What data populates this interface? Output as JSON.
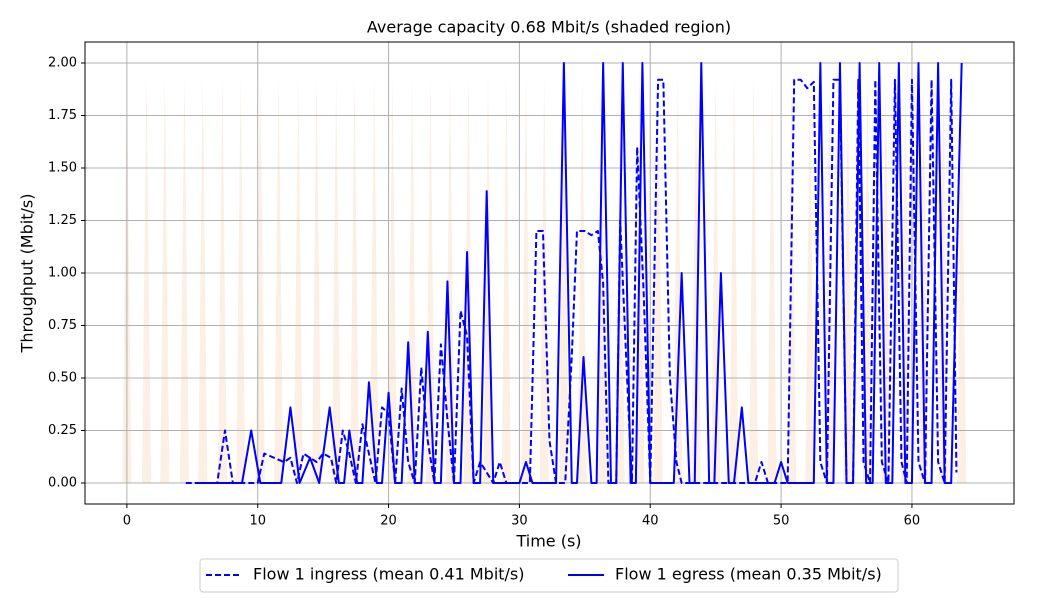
{
  "chart_data": {
    "type": "line",
    "title": "Average capacity 0.68 Mbit/s (shaded region)",
    "xlabel": "Time (s)",
    "ylabel": "Throughput (Mbit/s)",
    "xlim": [
      -3.2,
      67.8
    ],
    "ylim": [
      -0.1,
      2.1
    ],
    "xticks": [
      0,
      10,
      20,
      30,
      40,
      50,
      60
    ],
    "yticks": [
      {
        "value": 0,
        "label": "0.00"
      },
      {
        "value": 0.25,
        "label": "0.25"
      },
      {
        "value": 0.5,
        "label": "0.50"
      },
      {
        "value": 0.75,
        "label": "0.75"
      },
      {
        "value": 1,
        "label": "1.00"
      },
      {
        "value": 1.25,
        "label": "1.25"
      },
      {
        "value": 1.5,
        "label": "1.50"
      },
      {
        "value": 1.75,
        "label": "1.75"
      },
      {
        "value": 2,
        "label": "2.00"
      }
    ],
    "grid": true,
    "legend": "below",
    "shaded": {
      "color": "#fcefe4",
      "x": [
        0,
        1.5,
        2.9,
        4.4,
        5.8,
        7.3,
        8.7,
        10.2,
        11.6,
        13.1,
        14.5,
        16.0,
        17.4,
        18.9,
        20.3,
        21.8,
        23.2,
        24.7,
        26.1,
        27.6,
        29.0,
        30.5,
        31.9,
        33.4,
        34.8,
        36.3,
        37.7,
        39.2,
        40.6,
        42.1,
        43.5,
        45.0,
        46.4,
        47.9,
        49.3,
        50.8,
        52.2,
        53.7,
        55.1,
        56.6,
        58.0,
        59.5,
        60.9,
        62.4,
        63.8
      ],
      "values": [
        1.95,
        1.95,
        1.95,
        1.95,
        1.95,
        1.95,
        1.95,
        1.95,
        1.95,
        1.95,
        1.95,
        1.95,
        1.95,
        1.95,
        1.95,
        1.95,
        1.95,
        1.95,
        1.95,
        1.95,
        1.95,
        1.95,
        1.95,
        1.95,
        1.95,
        1.95,
        1.95,
        1.95,
        1.95,
        1.95,
        1.95,
        1.95,
        1.95,
        1.95,
        1.95,
        1.95,
        1.95,
        1.95,
        1.95,
        1.95,
        1.95,
        1.95,
        1.95,
        1.95,
        1.95
      ]
    },
    "series": [
      {
        "name": "Flow 1 ingress (mean 0.41 Mbit/s)",
        "color": "#0000ff",
        "dashed": true,
        "x": [
          4.5,
          6.9,
          7.5,
          8.1,
          10,
          10.5,
          12,
          12.5,
          13,
          13.5,
          14.5,
          15,
          15.6,
          16,
          16.5,
          17,
          17.5,
          18,
          18.5,
          19,
          19.5,
          20,
          20.5,
          21,
          21.5,
          22,
          22.5,
          23,
          23.5,
          24,
          24.5,
          25,
          25.5,
          26,
          26.5,
          27,
          28,
          28.5,
          29,
          30.8,
          31.3,
          31.8,
          32.3,
          32.8,
          33.5,
          34,
          34.4,
          35,
          35.5,
          36,
          36.4,
          36.8,
          37.4,
          37.7,
          38.3,
          38.6,
          39,
          39.5,
          40,
          40.6,
          41,
          41.5,
          42,
          42.4,
          48,
          48.5,
          49,
          50.5,
          51,
          51.5,
          52,
          52.5,
          53,
          53.5,
          54,
          54.5,
          55,
          55.5,
          55.9,
          56.3,
          56.8,
          57.2,
          57.7,
          58.2,
          58.7,
          59.2,
          59.6,
          60,
          60.5,
          61,
          61.5,
          62,
          62.5,
          63,
          63.4
        ],
        "values": [
          0,
          0,
          0.25,
          0,
          0,
          0.14,
          0.1,
          0.12,
          0,
          0.14,
          0.1,
          0.14,
          0.12,
          0,
          0.25,
          0.14,
          0,
          0.28,
          0.14,
          0,
          0.36,
          0.33,
          0,
          0.45,
          0.1,
          0,
          0.55,
          0.2,
          0,
          0.66,
          0.3,
          0,
          0.82,
          0.7,
          0,
          0.1,
          0,
          0.1,
          0,
          0,
          1.2,
          1.2,
          0.2,
          0,
          0,
          0.6,
          1.2,
          1.2,
          1.18,
          1.2,
          0.95,
          0,
          0,
          1.25,
          0.4,
          0,
          1.6,
          0.9,
          0,
          1.92,
          1.92,
          0.5,
          0.1,
          0,
          0,
          0.1,
          0,
          0,
          1.92,
          1.92,
          1.88,
          1.91,
          0.1,
          0,
          1.92,
          1.92,
          0,
          0,
          1.92,
          0.1,
          0,
          1.92,
          0.1,
          0,
          1.92,
          0.1,
          0,
          1.92,
          0.1,
          0,
          1.92,
          0.1,
          0,
          1.92,
          0.05
        ]
      },
      {
        "name": "Flow 1 egress (mean 0.35 Mbit/s)",
        "color": "#0000ff",
        "dashed": false,
        "x": [
          5.5,
          8.8,
          9.5,
          10.2,
          11.8,
          12.5,
          13.2,
          14,
          14.7,
          15.5,
          16.2,
          16.6,
          17,
          17.6,
          18,
          18.5,
          19.1,
          19.5,
          20,
          20.5,
          21,
          21.5,
          22,
          22.5,
          23,
          23.5,
          24,
          24.5,
          25,
          25.5,
          26,
          26.5,
          27,
          27.5,
          28,
          30,
          30.5,
          31,
          32.8,
          33.4,
          34,
          34.4,
          34.9,
          35.5,
          35.9,
          36.4,
          37,
          37.4,
          37.9,
          38.5,
          38.9,
          39.4,
          40,
          41.8,
          42.4,
          43,
          43.4,
          43.9,
          44.5,
          44.9,
          45.4,
          46,
          46.4,
          47,
          47.5,
          49.5,
          50,
          50.5,
          52.5,
          53,
          53.5,
          54,
          54.5,
          55,
          55.5,
          56,
          56.5,
          57,
          57.5,
          58,
          58.5,
          59,
          59.5,
          60,
          60.5,
          61,
          61.5,
          62,
          62.5,
          63,
          63.8
        ],
        "values": [
          0,
          0,
          0.25,
          0,
          0,
          0.36,
          0,
          0.12,
          0,
          0.36,
          0,
          0,
          0.25,
          0,
          0,
          0.48,
          0,
          0,
          0.43,
          0,
          0,
          0.67,
          0,
          0,
          0.72,
          0,
          0,
          0.96,
          0,
          0,
          1.1,
          0,
          0,
          1.39,
          0,
          0,
          0.1,
          0,
          0,
          2.0,
          0,
          0,
          0.6,
          0,
          0,
          2.0,
          0,
          0,
          2.0,
          0,
          0,
          2.0,
          0,
          0,
          1.0,
          0,
          0,
          2.0,
          0,
          0,
          1.0,
          0,
          0,
          0.36,
          0,
          0,
          0.1,
          0,
          0,
          2.0,
          0,
          0,
          2.0,
          0,
          0,
          2.0,
          0,
          0,
          2.0,
          0,
          0,
          2.0,
          0,
          0,
          2.0,
          0,
          0,
          2.0,
          0,
          0,
          2.0
        ]
      }
    ]
  }
}
